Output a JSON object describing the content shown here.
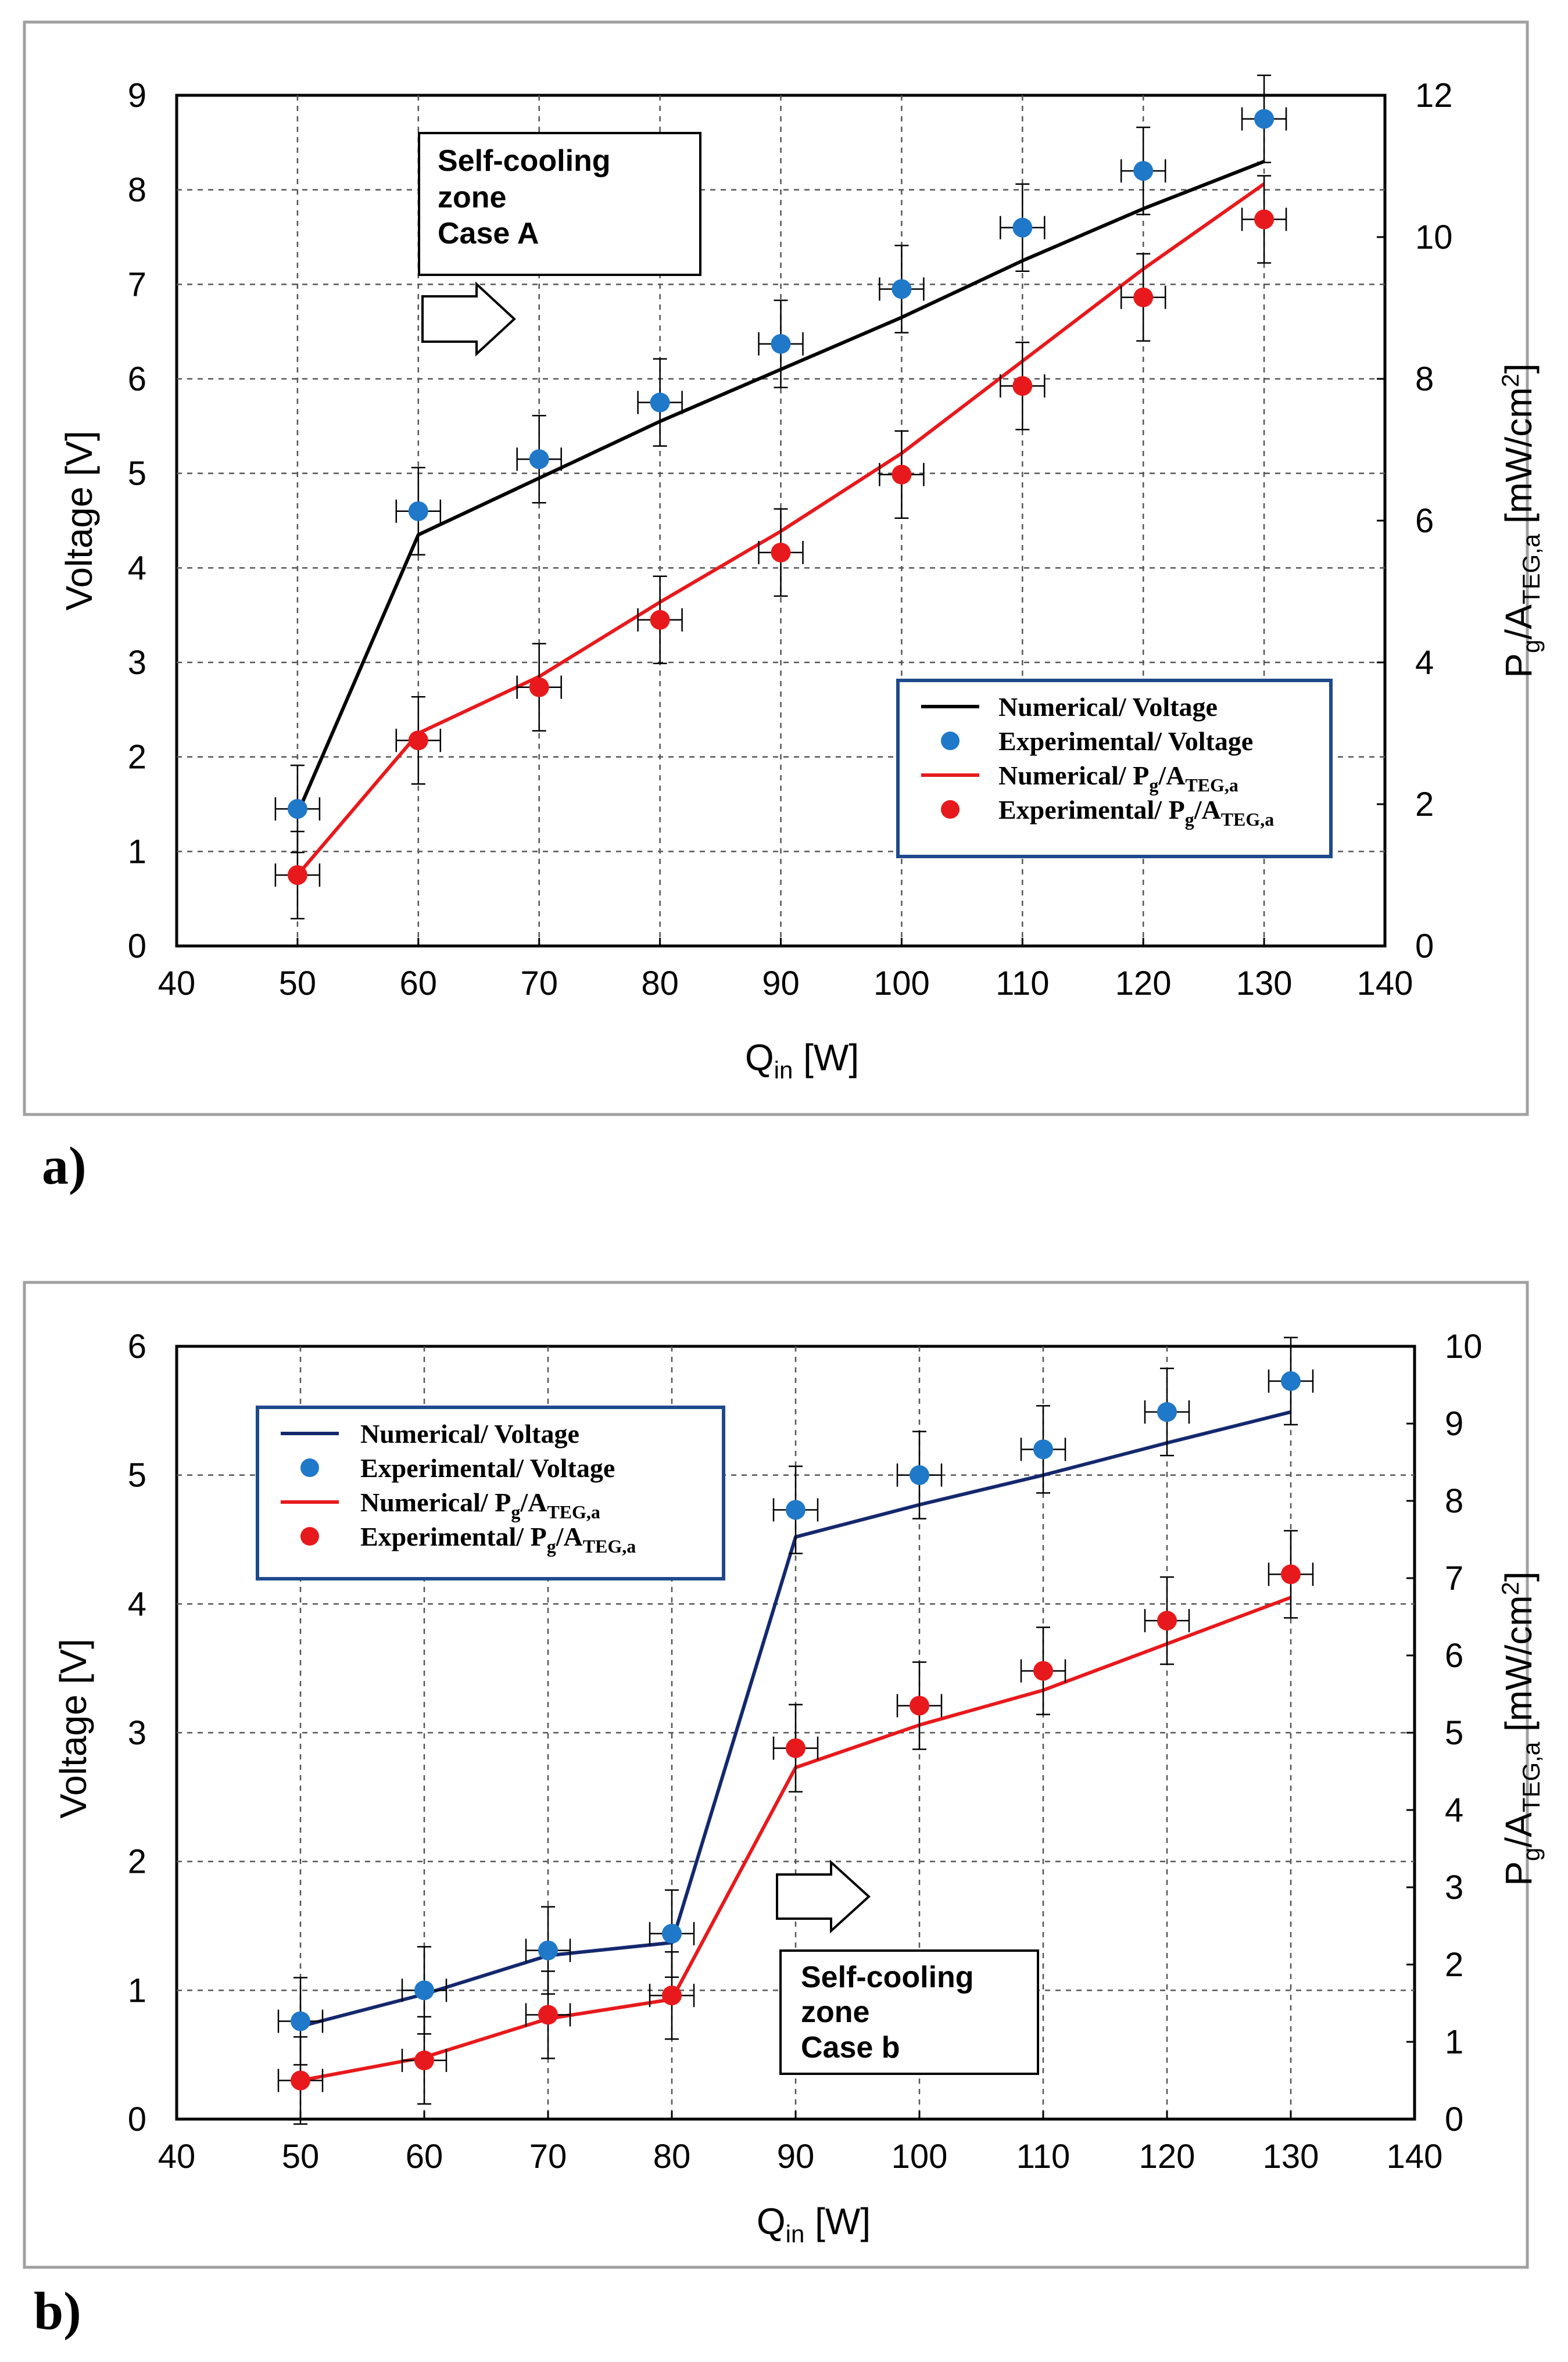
{
  "chart_data": [
    {
      "type": "line",
      "panel_label": "a)",
      "xlabel_main": "Q",
      "xlabel_sub": "in",
      "xlabel_unit": " [W]",
      "ylabel_left": "Voltage [V]",
      "ylabel_right": {
        "p": "P",
        "p_sub": "g",
        "slash": "/A",
        "a_sub": "TEG,a",
        "unit": " [mW/cm",
        "sup": "2",
        "close": "]"
      },
      "xlim": [
        40,
        140
      ],
      "xticks": [
        40,
        50,
        60,
        70,
        80,
        90,
        100,
        110,
        120,
        130,
        140
      ],
      "ylim_left": [
        0,
        9
      ],
      "yticks_left": [
        0,
        1,
        2,
        3,
        4,
        5,
        6,
        7,
        8,
        9
      ],
      "ylim_right": [
        0,
        12
      ],
      "yticks_right": [
        0,
        2,
        4,
        6,
        8,
        10,
        12
      ],
      "grid": true,
      "annotation": [
        "Self-cooling",
        "zone",
        "Case A"
      ],
      "legend": [
        {
          "label": "Numerical/ Voltage",
          "marker": "line",
          "color": "#000000"
        },
        {
          "label": "Experimental/ Voltage",
          "marker": "dot",
          "color": "#1f78c8"
        },
        {
          "label": "Numerical/ P",
          "sub": "g",
          "mid": "/A",
          "sub2": "TEG,a",
          "marker": "line",
          "color": "#e8191c"
        },
        {
          "label": "Experimental/ P",
          "sub": "g",
          "mid": "/A",
          "sub2": "TEG,a",
          "marker": "dot",
          "color": "#e8191c"
        }
      ],
      "series": [
        {
          "name": "Numerical/ Voltage",
          "axis": "left",
          "style": "line",
          "color": "#000000",
          "x": [
            50,
            60,
            70,
            80,
            90,
            100,
            110,
            120,
            130
          ],
          "y": [
            1.4,
            4.35,
            4.95,
            5.55,
            6.1,
            6.65,
            7.25,
            7.8,
            8.3
          ]
        },
        {
          "name": "Experimental/ Voltage",
          "axis": "left",
          "style": "dot",
          "color": "#1f78c8",
          "x": [
            50,
            60,
            70,
            80,
            90,
            100,
            110,
            120,
            130
          ],
          "y": [
            1.45,
            4.6,
            5.15,
            5.75,
            6.37,
            6.95,
            7.6,
            8.2,
            8.75
          ]
        },
        {
          "name": "Numerical/ Pg/ATEG,a",
          "axis": "right",
          "style": "line",
          "color": "#e8191c",
          "x": [
            50,
            60,
            70,
            80,
            90,
            100,
            110,
            120,
            130
          ],
          "y": [
            1.0,
            3.0,
            3.8,
            4.85,
            5.85,
            6.95,
            8.25,
            9.55,
            10.75
          ]
        },
        {
          "name": "Experimental/ Pg/ATEG,a",
          "axis": "right",
          "style": "dot",
          "color": "#e8191c",
          "x": [
            50,
            60,
            70,
            80,
            90,
            100,
            110,
            120,
            130
          ],
          "y": [
            1.0,
            2.9,
            3.65,
            4.6,
            5.55,
            6.65,
            7.9,
            9.15,
            10.25
          ]
        }
      ]
    },
    {
      "type": "line",
      "panel_label": "b)",
      "xlabel_main": "Q",
      "xlabel_sub": "in",
      "xlabel_unit": " [W]",
      "ylabel_left": "Voltage [V]",
      "ylabel_right": {
        "p": "P",
        "p_sub": "g",
        "slash": "/A",
        "a_sub": "TEG,a",
        "unit": " [mW/cm",
        "sup": "2",
        "close": "]"
      },
      "xlim": [
        40,
        140
      ],
      "xticks": [
        40,
        50,
        60,
        70,
        80,
        90,
        100,
        110,
        120,
        130,
        140
      ],
      "ylim_left": [
        0,
        6
      ],
      "yticks_left": [
        0,
        1,
        2,
        3,
        4,
        5,
        6
      ],
      "ylim_right": [
        0,
        10
      ],
      "yticks_right": [
        0,
        1,
        2,
        3,
        4,
        5,
        6,
        7,
        8,
        9,
        10
      ],
      "grid": true,
      "annotation": [
        "Self-cooling",
        "zone",
        "Case b"
      ],
      "legend": [
        {
          "label": "Numerical/ Voltage",
          "marker": "line",
          "color": "#14286e"
        },
        {
          "label": "Experimental/ Voltage",
          "marker": "dot",
          "color": "#1f78c8"
        },
        {
          "label": "Numerical/ P",
          "sub": "g",
          "mid": "/A",
          "sub2": "TEG,a",
          "marker": "line",
          "color": "#e8191c"
        },
        {
          "label": "Experimental/ P",
          "sub": "g",
          "mid": "/A",
          "sub2": "TEG,a",
          "marker": "dot",
          "color": "#e8191c"
        }
      ],
      "series": [
        {
          "name": "Numerical/ Voltage",
          "axis": "left",
          "style": "line",
          "color": "#14286e",
          "x": [
            50,
            60,
            70,
            80,
            90,
            100,
            110,
            120,
            130
          ],
          "y": [
            0.72,
            0.97,
            1.27,
            1.37,
            4.52,
            4.77,
            5.0,
            5.25,
            5.49
          ]
        },
        {
          "name": "Experimental/ Voltage",
          "axis": "left",
          "style": "dot",
          "color": "#1f78c8",
          "x": [
            50,
            60,
            70,
            80,
            90,
            100,
            110,
            120,
            130
          ],
          "y": [
            0.76,
            1.0,
            1.31,
            1.44,
            4.73,
            5.0,
            5.2,
            5.49,
            5.73
          ]
        },
        {
          "name": "Numerical/ Pg/ATEG,a",
          "axis": "right",
          "style": "line",
          "color": "#e8191c",
          "x": [
            50,
            60,
            70,
            80,
            90,
            100,
            110,
            120,
            130
          ],
          "y": [
            0.5,
            0.8,
            1.3,
            1.55,
            4.55,
            5.1,
            5.55,
            6.15,
            6.75
          ]
        },
        {
          "name": "Experimental/ Pg/ATEG,a",
          "axis": "right",
          "style": "dot",
          "color": "#e8191c",
          "x": [
            50,
            60,
            70,
            80,
            90,
            100,
            110,
            120,
            130
          ],
          "y": [
            0.5,
            0.76,
            1.35,
            1.6,
            4.8,
            5.35,
            5.8,
            6.45,
            7.05
          ]
        }
      ]
    }
  ]
}
